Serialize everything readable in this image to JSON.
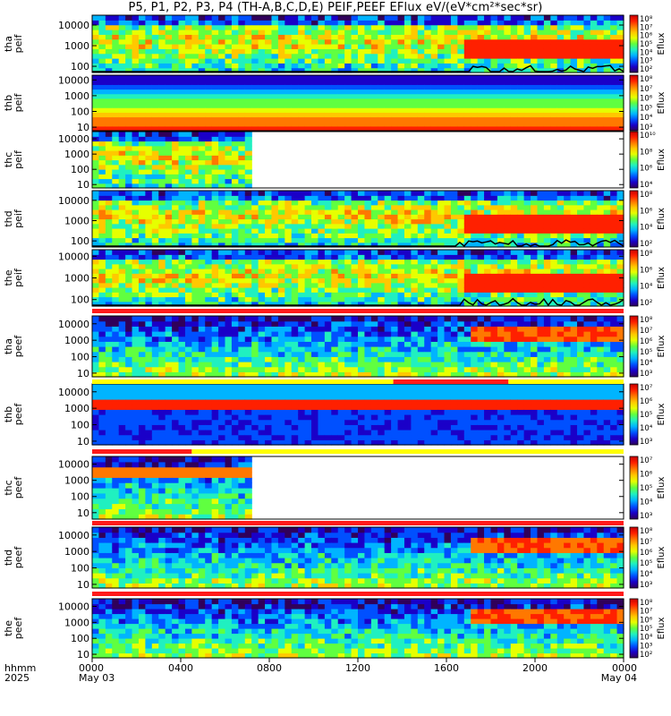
{
  "title": "P5, P1, P2, P3, P4 (TH-A,B,C,D,E) PEIF,PEEF EFlux eV/(eV*cm²*sec*sr)",
  "colors": {
    "colormap": [
      "#30005a",
      "#1a00c8",
      "#0050ff",
      "#00b4ff",
      "#20f0c0",
      "#60ff40",
      "#e6ff00",
      "#ffc800",
      "#ff7800",
      "#ff2000",
      "#c80000"
    ],
    "flag_red": "#ff1a1a",
    "flag_yellow": "#ffff00",
    "flux_line": "#000000"
  },
  "chart_data": {
    "type": "heatmap",
    "x_axis": {
      "label_lines": [
        "hhmm",
        "2025"
      ],
      "ticks": [
        "0000",
        "0400",
        "0800",
        "1200",
        "1600",
        "2000",
        "0000"
      ],
      "tick_hours": [
        0,
        4,
        8,
        12,
        16,
        20,
        24
      ],
      "dates": [
        "May 03",
        "May 04"
      ],
      "range_hours": [
        0,
        24
      ]
    },
    "colorbar_label": "Eflux",
    "y_scale": "log",
    "panels": [
      {
        "id": "tha-peif",
        "ylabel": [
          "tha",
          "peif"
        ],
        "yticks": [
          "10000",
          "1000",
          "100"
        ],
        "ylim": [
          50,
          30000
        ],
        "cbar_ticks": [
          "10⁸",
          "10⁷",
          "10⁶",
          "10⁵",
          "10⁴",
          "10³",
          "10²"
        ],
        "data_until_hour": 24
      },
      {
        "id": "thb-peif",
        "ylabel": [
          "thb",
          "peif"
        ],
        "yticks": [
          "10000",
          "1000",
          "100",
          "10"
        ],
        "ylim": [
          6,
          20000
        ],
        "cbar_ticks": [
          "10⁸",
          "10⁷",
          "10⁶",
          "10⁵",
          "10⁴",
          "10³"
        ],
        "data_until_hour": 24
      },
      {
        "id": "thc-peif",
        "ylabel": [
          "thc",
          "peif"
        ],
        "yticks": [
          "10000",
          "1000",
          "100",
          "10"
        ],
        "ylim": [
          6,
          30000
        ],
        "cbar_ticks": [
          "10¹⁰",
          "10⁸",
          "10⁶",
          "10⁴"
        ],
        "data_until_hour": 7.2
      },
      {
        "id": "thd-peif",
        "ylabel": [
          "thd",
          "peif"
        ],
        "yticks": [
          "10000",
          "1000",
          "100"
        ],
        "ylim": [
          50,
          30000
        ],
        "cbar_ticks": [
          "10⁸",
          "10⁶",
          "10⁴",
          "10²"
        ],
        "data_until_hour": 24
      },
      {
        "id": "the-peif",
        "ylabel": [
          "the",
          "peif"
        ],
        "yticks": [
          "10000",
          "1000",
          "100"
        ],
        "ylim": [
          50,
          20000
        ],
        "cbar_ticks": [
          "10⁸",
          "10⁶",
          "10⁴",
          "10²"
        ],
        "data_until_hour": 24
      },
      {
        "id": "tha-peef",
        "ylabel": [
          "tha",
          "peef"
        ],
        "yticks": [
          "10000",
          "1000",
          "100",
          "10"
        ],
        "ylim": [
          6,
          30000
        ],
        "cbar_ticks": [
          "10⁸",
          "10⁷",
          "10⁶",
          "10⁵",
          "10⁴",
          "10³"
        ],
        "data_until_hour": 24
      },
      {
        "id": "thb-peef",
        "ylabel": [
          "thb",
          "peef"
        ],
        "yticks": [
          "10000",
          "1000",
          "100",
          "10"
        ],
        "ylim": [
          6,
          30000
        ],
        "cbar_ticks": [
          "10⁷",
          "10⁶",
          "10⁵",
          "10⁴",
          "10³"
        ],
        "data_until_hour": 24
      },
      {
        "id": "thc-peef",
        "ylabel": [
          "thc",
          "peef"
        ],
        "yticks": [
          "10000",
          "1000",
          "100",
          "10"
        ],
        "ylim": [
          4,
          30000
        ],
        "cbar_ticks": [
          "10⁷",
          "10⁶",
          "10⁵",
          "10⁴",
          "10³"
        ],
        "data_until_hour": 7.2
      },
      {
        "id": "thd-peef",
        "ylabel": [
          "thd",
          "peef"
        ],
        "yticks": [
          "10000",
          "1000",
          "100",
          "10"
        ],
        "ylim": [
          6,
          30000
        ],
        "cbar_ticks": [
          "10⁸",
          "10⁷",
          "10⁶",
          "10⁵",
          "10⁴",
          "10³"
        ],
        "data_until_hour": 24
      },
      {
        "id": "the-peef",
        "ylabel": [
          "the",
          "peef"
        ],
        "yticks": [
          "10000",
          "1000",
          "100",
          "10"
        ],
        "ylim": [
          6,
          30000
        ],
        "cbar_ticks": [
          "10⁸",
          "10⁷",
          "10⁶",
          "10⁵",
          "10⁴",
          "10³",
          "10²"
        ],
        "data_until_hour": 24
      }
    ],
    "mode_bars": [
      {
        "after_panel": "the-peif",
        "segments": [
          {
            "from": 0,
            "to": 24,
            "color": "red"
          }
        ]
      },
      {
        "after_panel": "tha-peef",
        "segments": [
          {
            "from": 0,
            "to": 13.6,
            "color": "yellow"
          },
          {
            "from": 13.6,
            "to": 18.8,
            "color": "red"
          },
          {
            "from": 18.8,
            "to": 24,
            "color": "yellow"
          }
        ]
      },
      {
        "after_panel": "thb-peef",
        "segments": [
          {
            "from": 0,
            "to": 4.5,
            "color": "red"
          },
          {
            "from": 4.5,
            "to": 24,
            "color": "yellow"
          }
        ]
      },
      {
        "after_panel": "thc-peef",
        "segments": [
          {
            "from": 0,
            "to": 24,
            "color": "red"
          }
        ]
      },
      {
        "after_panel": "thd-peef",
        "segments": [
          {
            "from": 0,
            "to": 24,
            "color": "red"
          }
        ]
      }
    ]
  }
}
